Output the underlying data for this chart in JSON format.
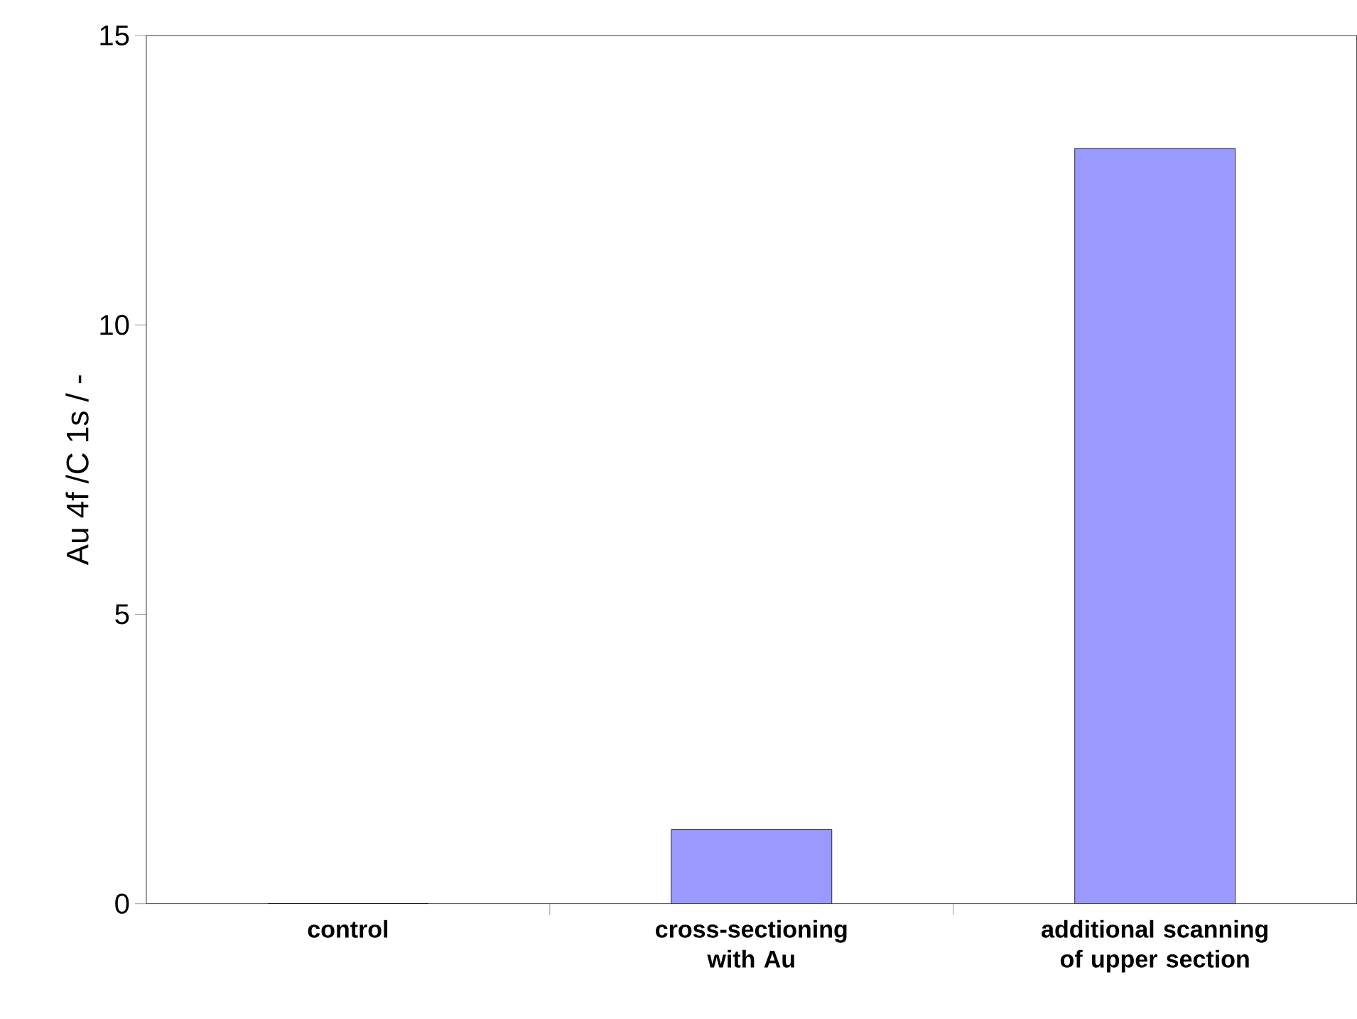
{
  "chart_data": {
    "type": "bar",
    "ylabel": "Au 4f /C 1s / -",
    "categories": [
      "control",
      "cross-sectioning with Au",
      "additional scanning of upper section"
    ],
    "values": [
      0,
      1.28,
      13.05
    ],
    "color": "#9999ff",
    "ylim": [
      0,
      15
    ],
    "yticks": [
      0,
      5,
      10,
      15
    ],
    "grid": false
  }
}
